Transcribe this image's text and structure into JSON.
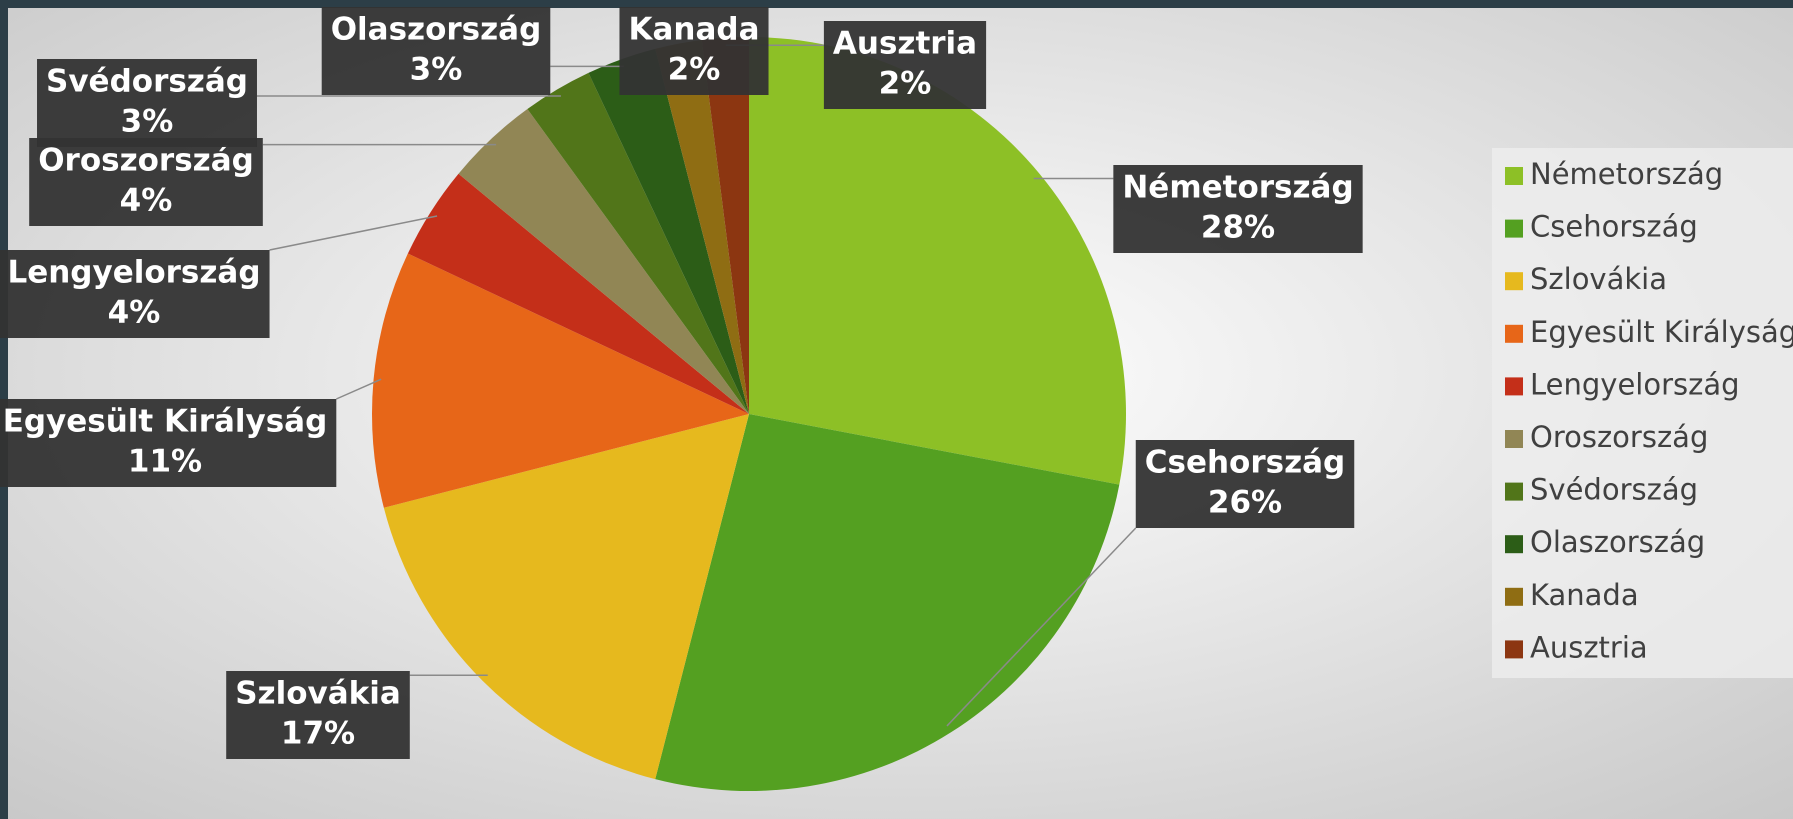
{
  "chart_data": {
    "type": "pie",
    "categories": [
      "Németország",
      "Csehország",
      "Szlovákia",
      "Egyesült Királyság",
      "Lengyelország",
      "Oroszország",
      "Svédország",
      "Olaszország",
      "Kanada",
      "Ausztria"
    ],
    "values": [
      28,
      26,
      17,
      11,
      4,
      4,
      3,
      3,
      2,
      2
    ],
    "value_labels": [
      "28%",
      "26%",
      "17%",
      "11%",
      "4%",
      "4%",
      "3%",
      "3%",
      "2%",
      "2%"
    ],
    "colors": [
      "#8dc026",
      "#54a021",
      "#e6b91e",
      "#e76618",
      "#c42f19",
      "#918655",
      "#517519",
      "#2c5d17",
      "#8f6d13",
      "#8c3611"
    ],
    "legend": "right"
  }
}
